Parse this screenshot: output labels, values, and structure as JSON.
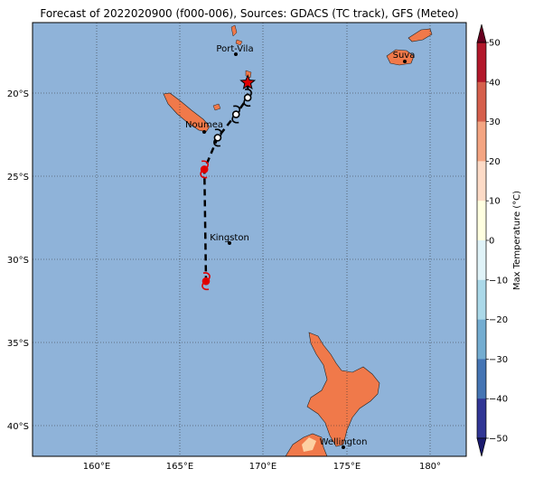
{
  "title": "Forecast of 2022020900 (f000-006), Sources: GDACS (TC track), GFS (Meteo)",
  "map": {
    "lon_range": [
      156,
      182
    ],
    "lat_range": [
      -42,
      -16
    ],
    "lon_ticks": [
      160,
      165,
      170,
      175,
      180
    ],
    "lon_tick_labels": [
      "160°E",
      "165°E",
      "170°E",
      "175°E",
      "180°"
    ],
    "lat_ticks": [
      -20,
      -25,
      -30,
      -35,
      -40
    ],
    "lat_tick_labels": [
      "20°S",
      "25°S",
      "30°S",
      "35°S",
      "40°S"
    ],
    "grid": true,
    "ocean_color": "#8fb3d9",
    "land_color": "#f0794a",
    "cities": [
      {
        "name": "Port-Vila",
        "lon": 168.3,
        "lat": -17.7
      },
      {
        "name": "Suva",
        "lon": 178.4,
        "lat": -18.1
      },
      {
        "name": "Noumea",
        "lon": 166.4,
        "lat": -22.3
      },
      {
        "name": "Kingston",
        "lon": 168.0,
        "lat": -29.0
      },
      {
        "name": "Wellington",
        "lon": 174.8,
        "lat": -41.3
      }
    ],
    "track": {
      "start_marker": "red-star",
      "points": [
        {
          "lon": 168.9,
          "lat": -19.6,
          "symbol": "star"
        },
        {
          "lon": 168.9,
          "lat": -20.5,
          "symbol": "cyclone-white"
        },
        {
          "lon": 168.2,
          "lat": -21.5,
          "symbol": "cyclone-white"
        },
        {
          "lon": 167.1,
          "lat": -22.9,
          "symbol": "cyclone-white"
        },
        {
          "lon": 166.3,
          "lat": -24.8,
          "symbol": "cyclone-red"
        },
        {
          "lon": 166.4,
          "lat": -31.5,
          "symbol": "cyclone-red"
        }
      ]
    }
  },
  "colorbar": {
    "label": "Max Temperature (°C)",
    "ticks": [
      "50",
      "40",
      "30",
      "20",
      "10",
      "0",
      "−10",
      "−20",
      "−30",
      "−40",
      "−50"
    ],
    "colors": [
      "#67001f",
      "#b2182b",
      "#d6604d",
      "#f4a582",
      "#fddbc7",
      "#ffffe0",
      "#e0f3f8",
      "#abd9e9",
      "#74add1",
      "#4575b4",
      "#313695",
      "#1a1a6e"
    ]
  }
}
